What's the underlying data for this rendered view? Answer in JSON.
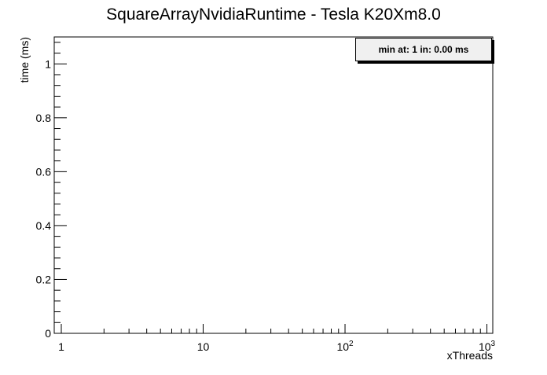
{
  "chart_data": {
    "type": "line",
    "title": "SquareArrayNvidiaRuntime - Tesla K20Xm8.0",
    "xlabel": "xThreads",
    "ylabel": "time (ms)",
    "xscale": "log",
    "xlim": [
      1,
      1100
    ],
    "ylim": [
      0,
      1.1
    ],
    "x_ticks": [
      {
        "value": 1,
        "label": "1"
      },
      {
        "value": 10,
        "label": "10"
      },
      {
        "value": 100,
        "label": "10",
        "sup": "2"
      },
      {
        "value": 1000,
        "label": "10",
        "sup": "3"
      }
    ],
    "y_ticks": [
      {
        "value": 0,
        "label": "0"
      },
      {
        "value": 0.2,
        "label": "0.2"
      },
      {
        "value": 0.4,
        "label": "0.4"
      },
      {
        "value": 0.6,
        "label": "0.6"
      },
      {
        "value": 0.8,
        "label": "0.8"
      },
      {
        "value": 1,
        "label": "1"
      }
    ],
    "series": [],
    "grid": false,
    "legend": {
      "text": "min at: 1 in: 0.00 ms",
      "position": "top-right"
    }
  },
  "colors": {
    "axis": "#000000",
    "legend_bg": "#f0f0f0"
  }
}
